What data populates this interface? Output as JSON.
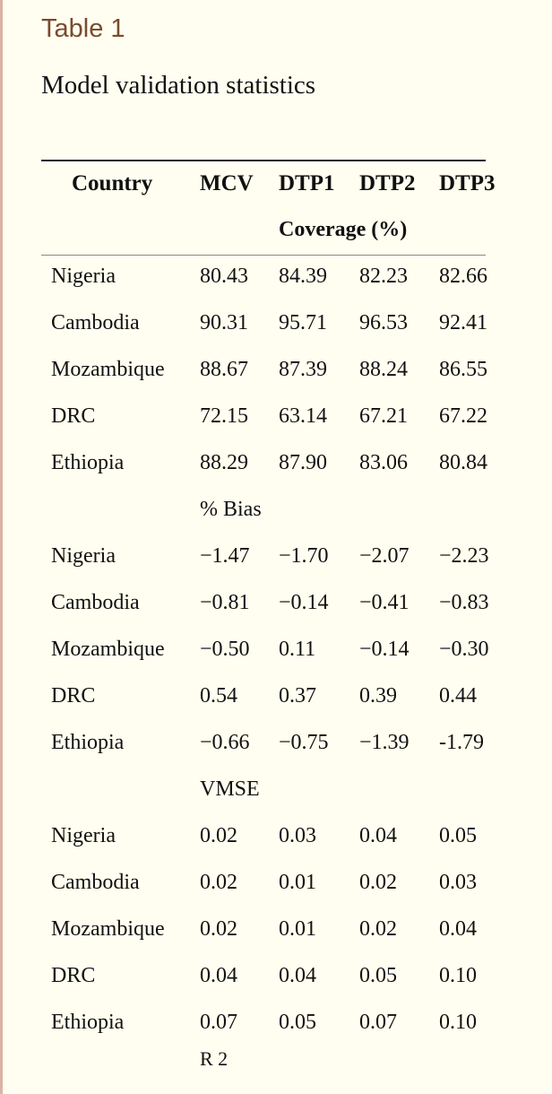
{
  "label": "Table 1",
  "caption": "Model validation statistics",
  "headers": [
    "Country",
    "MCV",
    "DTP1",
    "DTP2",
    "DTP3"
  ],
  "sections": [
    {
      "title": "Coverage (%)",
      "rows": [
        [
          "Nigeria",
          "80.43",
          "84.39",
          "82.23",
          "82.66"
        ],
        [
          "Cambodia",
          "90.31",
          "95.71",
          "96.53",
          "92.41"
        ],
        [
          "Mozambique",
          "88.67",
          "87.39",
          "88.24",
          "86.55"
        ],
        [
          "DRC",
          "72.15",
          "63.14",
          "67.21",
          "67.22"
        ],
        [
          "Ethiopia",
          "88.29",
          "87.90",
          "83.06",
          "80.84"
        ]
      ]
    },
    {
      "title": "% Bias",
      "rows": [
        [
          "Nigeria",
          "−1.47",
          "−1.70",
          "−2.07",
          "−2.23"
        ],
        [
          "Cambodia",
          "−0.81",
          "−0.14",
          "−0.41",
          "−0.83"
        ],
        [
          "Mozambique",
          "−0.50",
          "0.11",
          "−0.14",
          "−0.30"
        ],
        [
          "DRC",
          "0.54",
          "0.37",
          "0.39",
          "0.44"
        ],
        [
          "Ethiopia",
          "−0.66",
          "−0.75",
          "−1.39",
          "-1.79"
        ]
      ]
    },
    {
      "title": "VMSE",
      "rows": [
        [
          "Nigeria",
          "0.02",
          "0.03",
          "0.04",
          "0.05"
        ],
        [
          "Cambodia",
          "0.02",
          "0.01",
          "0.02",
          "0.03"
        ],
        [
          "Mozambique",
          "0.02",
          "0.01",
          "0.02",
          "0.04"
        ],
        [
          "DRC",
          "0.04",
          "0.04",
          "0.05",
          "0.10"
        ],
        [
          "Ethiopia",
          "0.07",
          "0.05",
          "0.07",
          "0.10"
        ]
      ]
    }
  ],
  "footnote": "R 2"
}
